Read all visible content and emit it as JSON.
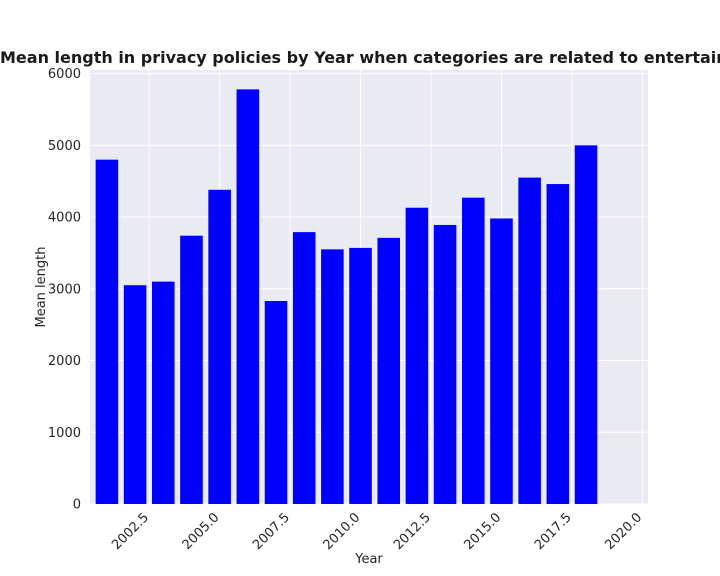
{
  "chart_data": {
    "type": "bar",
    "title": "Mean length in privacy policies by Year when categories are related to entertainment;mediasharing",
    "xlabel": "Year",
    "ylabel": "Mean length",
    "xlim": [
      2000.4,
      2020.2
    ],
    "ylim": [
      0,
      6050
    ],
    "x_ticks": [
      "2002.5",
      "2005.0",
      "2007.5",
      "2010.0",
      "2012.5",
      "2015.0",
      "2017.5",
      "2020.0"
    ],
    "y_ticks": [
      "0",
      "1000",
      "2000",
      "3000",
      "4000",
      "5000",
      "6000"
    ],
    "grid": true,
    "bar_color": "#0000ff",
    "background": "#eaeaf2",
    "x": [
      2001,
      2002,
      2003,
      2004,
      2005,
      2006,
      2007,
      2008,
      2009,
      2010,
      2011,
      2012,
      2013,
      2014,
      2015,
      2016,
      2017,
      2018,
      2019
    ],
    "values": [
      4800,
      3050,
      3100,
      3740,
      4380,
      5780,
      2830,
      3790,
      3550,
      3570,
      3710,
      4130,
      3890,
      4270,
      3980,
      4550,
      4460,
      5000,
      0
    ]
  }
}
